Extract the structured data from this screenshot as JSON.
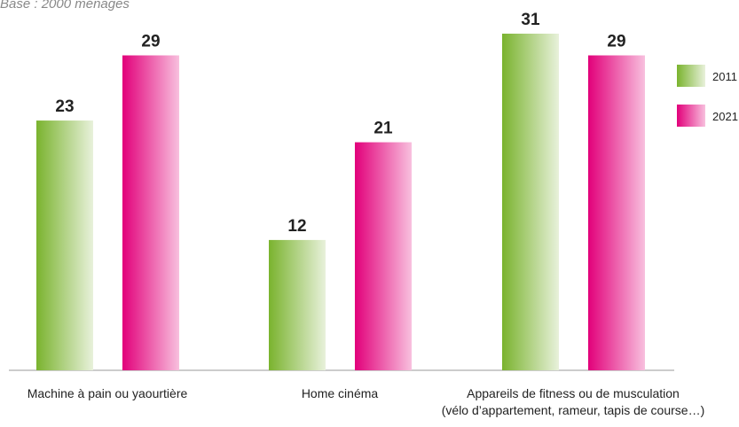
{
  "chart_data": {
    "type": "bar",
    "subtitle": "Base : 2000 ménages",
    "categories": [
      "Machine à pain ou yaourtière",
      "Home cinéma",
      "Appareils de fitness ou de musculation\n(vélo d’appartement, rameur, tapis de course…)"
    ],
    "series": [
      {
        "name": "2011",
        "color": "#7ab32e",
        "values": [
          23,
          12,
          31
        ]
      },
      {
        "name": "2021",
        "color": "#e2007a",
        "values": [
          29,
          21,
          29
        ]
      }
    ],
    "legend": "top-right"
  }
}
